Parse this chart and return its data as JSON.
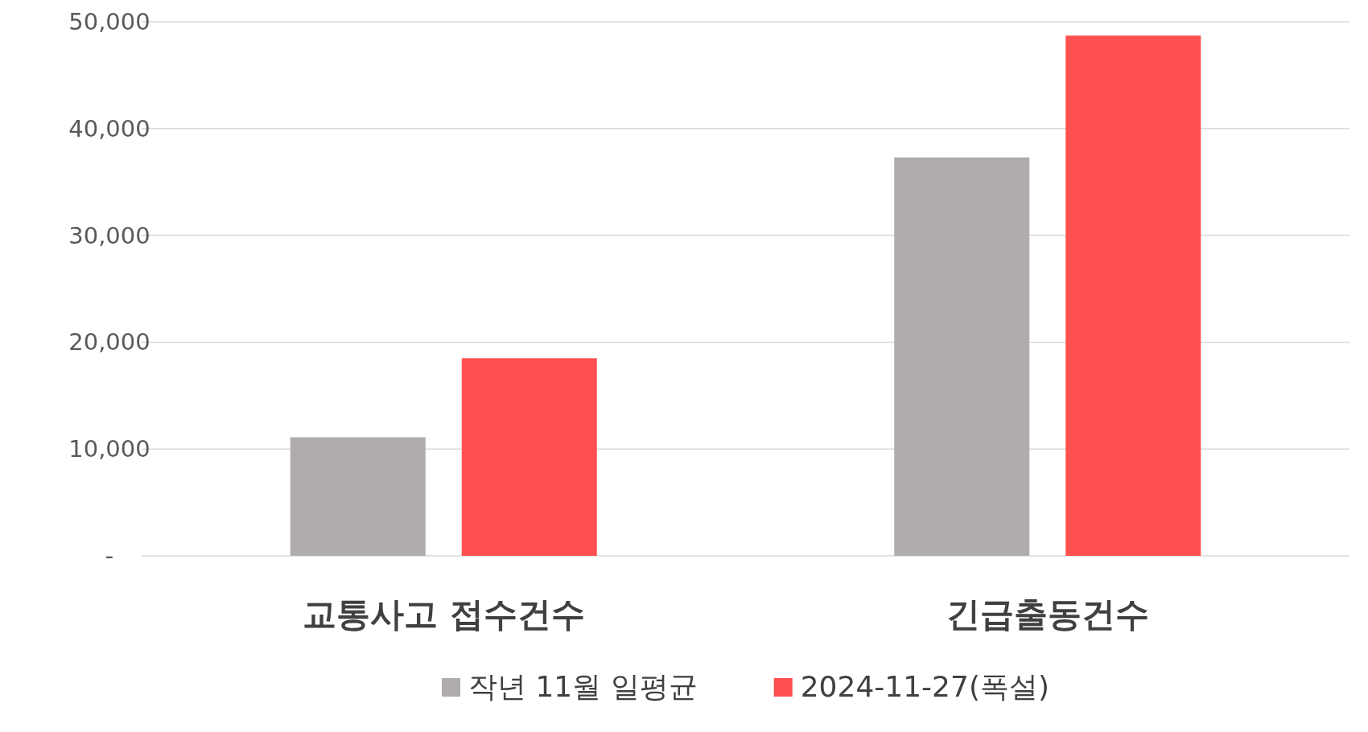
{
  "chart_data": {
    "type": "bar",
    "categories": [
      "교통사고 접수건수",
      "긴급출동건수"
    ],
    "series": [
      {
        "name": "작년 11월 일평균",
        "color": "#b0acab",
        "values": [
          11100,
          37300
        ]
      },
      {
        "name": "2024-11-27(폭설)",
        "color": "#ff5050",
        "values": [
          18500,
          48700
        ]
      }
    ],
    "ylim": [
      0,
      50000
    ],
    "yticks": [
      {
        "value": 0,
        "label": "-"
      },
      {
        "value": 10000,
        "label": "10,000"
      },
      {
        "value": 20000,
        "label": "20,000"
      },
      {
        "value": 30000,
        "label": "30,000"
      },
      {
        "value": 40000,
        "label": "40,000"
      },
      {
        "value": 50000,
        "label": "50,000"
      }
    ],
    "grid": "y",
    "legend": "bottom"
  }
}
